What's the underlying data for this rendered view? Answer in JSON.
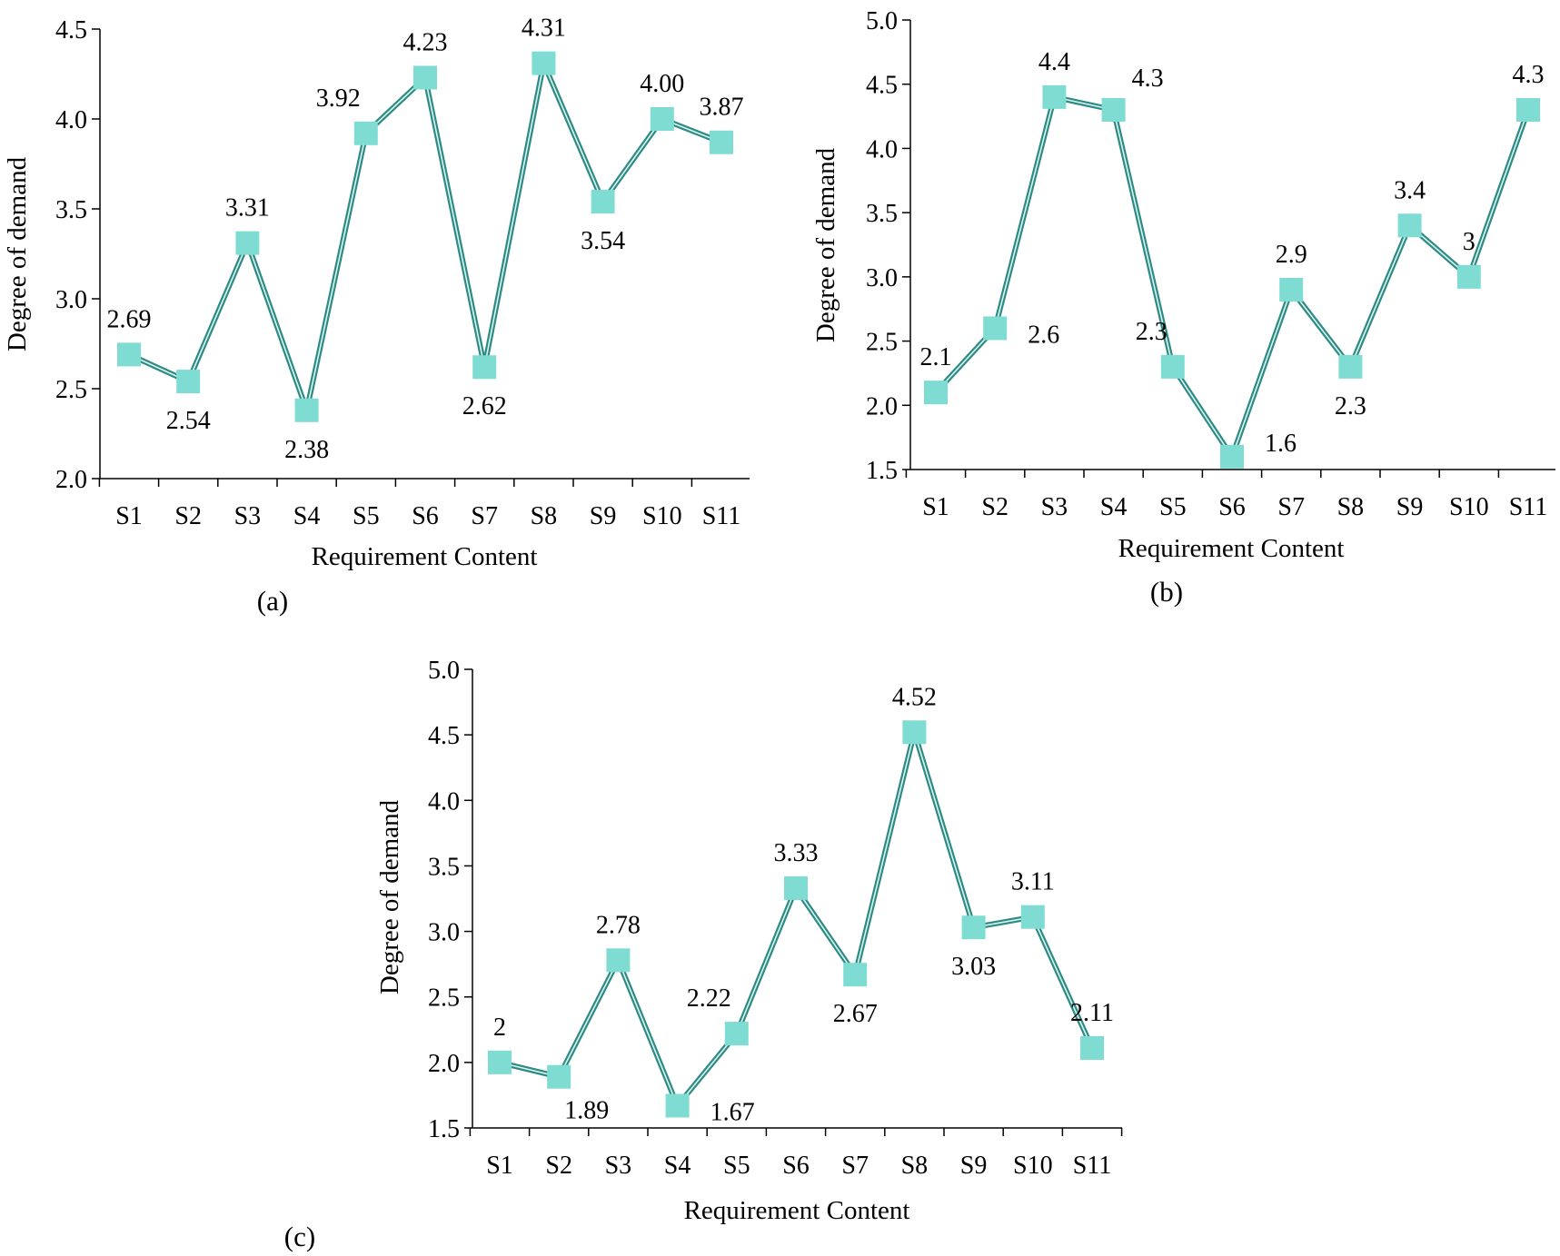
{
  "colors": {
    "line_outer": "#2e8b84",
    "line_inner": "#d9f4f1",
    "marker": "#7fdcd2",
    "axis": "#000000"
  },
  "chart_data": [
    {
      "type": "line",
      "panel_label": "(a)",
      "xlabel": "Requirement Content",
      "ylabel": "Degree of demand",
      "ylim": [
        2.0,
        4.5
      ],
      "yticks": [
        "2.0",
        "2.5",
        "3.0",
        "3.5",
        "4.0",
        "4.5"
      ],
      "categories": [
        "S1",
        "S2",
        "S3",
        "S4",
        "S5",
        "S6",
        "S7",
        "S8",
        "S9",
        "S10",
        "S11"
      ],
      "values": [
        2.69,
        2.54,
        3.31,
        2.38,
        3.92,
        4.23,
        2.62,
        4.31,
        3.54,
        4.0,
        3.87
      ],
      "data_labels": [
        "2.69",
        "2.54",
        "3.31",
        "2.38",
        "3.92",
        "4.23",
        "2.62",
        "4.31",
        "3.54",
        "4.00",
        "3.87"
      ],
      "label_positions": [
        "above",
        "below",
        "above",
        "below",
        "above-left",
        "above",
        "below",
        "above",
        "below",
        "above",
        "above"
      ]
    },
    {
      "type": "line",
      "panel_label": "(b)",
      "xlabel": "Requirement Content",
      "ylabel": "Degree of demand",
      "ylim": [
        1.5,
        5.0
      ],
      "yticks": [
        "1.5",
        "2.0",
        "2.5",
        "3.0",
        "3.5",
        "4.0",
        "4.5",
        "5.0"
      ],
      "categories": [
        "S1",
        "S2",
        "S3",
        "S4",
        "S5",
        "S6",
        "S7",
        "S8",
        "S9",
        "S10",
        "S11"
      ],
      "values": [
        2.1,
        2.6,
        4.4,
        4.3,
        2.3,
        1.6,
        2.9,
        2.3,
        3.4,
        3.0,
        4.3
      ],
      "data_labels": [
        "2.1",
        "2.6",
        "4.4",
        "4.3",
        "2.3",
        "1.6",
        "2.9",
        "2.3",
        "3.4",
        "3",
        "4.3"
      ],
      "label_positions": [
        "above",
        "right-below",
        "above",
        "above-right",
        "above-left",
        "right",
        "above",
        "below",
        "above",
        "above",
        "above"
      ]
    },
    {
      "type": "line",
      "panel_label": "(c)",
      "xlabel": "Requirement Content",
      "ylabel": "Degree of demand",
      "ylim": [
        1.5,
        5.0
      ],
      "yticks": [
        "1.5",
        "2.0",
        "2.5",
        "3.0",
        "3.5",
        "4.0",
        "4.5",
        "5.0"
      ],
      "categories": [
        "S1",
        "S2",
        "S3",
        "S4",
        "S5",
        "S6",
        "S7",
        "S8",
        "S9",
        "S10",
        "S11"
      ],
      "values": [
        2.0,
        1.89,
        2.78,
        1.67,
        2.22,
        3.33,
        2.67,
        4.52,
        3.03,
        3.11,
        2.11
      ],
      "data_labels": [
        "2",
        "1.89",
        "2.78",
        "1.67",
        "2.22",
        "3.33",
        "2.67",
        "4.52",
        "3.03",
        "3.11",
        "2.11"
      ],
      "label_positions": [
        "above",
        "below-right",
        "above",
        "right-below",
        "above-left",
        "above",
        "below",
        "above",
        "below",
        "above",
        "above"
      ]
    }
  ]
}
